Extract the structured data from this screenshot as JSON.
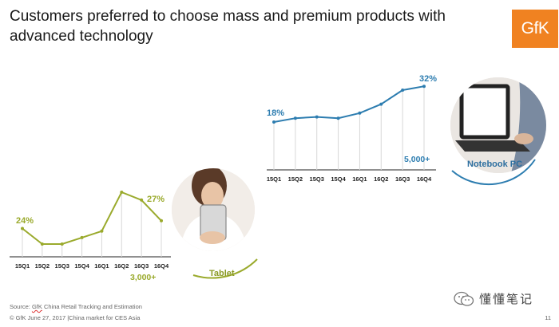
{
  "title": "Customers preferred to choose mass and premium products with advanced technology",
  "logo_text": "GfK",
  "footer": {
    "source_prefix": "Source: ",
    "source_brand": "GfK",
    "source_rest": " China Retail Tracking and Estimation",
    "copyright": "© GfK June 27, 2017 |China market for CES Asia",
    "page_number": "11"
  },
  "watermark": "懂懂笔记",
  "colors": {
    "tablet": "#9aaa2c",
    "notebook": "#2d7db0",
    "logo": "#f08221"
  },
  "chart_data": [
    {
      "type": "line",
      "name": "Tablet",
      "categories": [
        "15Q1",
        "15Q2",
        "15Q3",
        "15Q4",
        "16Q1",
        "16Q2",
        "16Q3",
        "16Q4"
      ],
      "values": [
        24,
        18,
        18,
        20.5,
        23,
        38,
        35,
        27
      ],
      "start_label": "24%",
      "end_label": "27%",
      "volume_label": "3,000+",
      "badge_label": "Tablet"
    },
    {
      "type": "line",
      "name": "Notebook PC",
      "categories": [
        "15Q1",
        "15Q2",
        "15Q3",
        "15Q4",
        "16Q1",
        "16Q2",
        "16Q3",
        "16Q4"
      ],
      "values": [
        18,
        19.5,
        20,
        19.5,
        21.5,
        25,
        30.5,
        32
      ],
      "start_label": "18%",
      "end_label": "32%",
      "volume_label": "5,000+",
      "badge_label": "Notebook PC"
    }
  ]
}
